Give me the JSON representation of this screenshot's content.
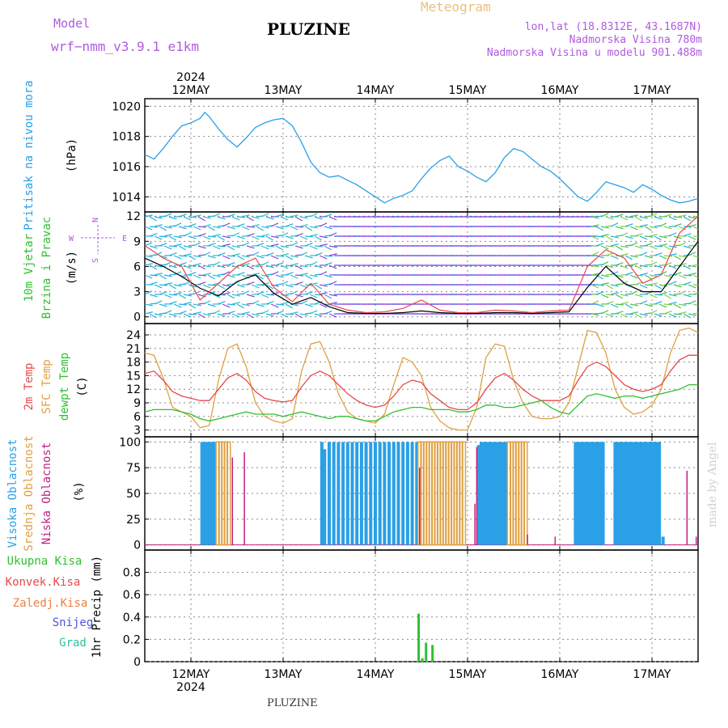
{
  "header": {
    "model_label": "Model",
    "model_name": "wrf−nmm_v3.9.1  e1km",
    "title": "PLUZINE",
    "meteogram_label": "Meteogram",
    "lonlat": "lon,lat (18.8312E, 43.1687N)",
    "elevation": "Nadmorska Visina 780m",
    "model_elevation": "Nadmorska Visina u modelu 901.488m",
    "footer_title": "PLUZINE",
    "credit": "made by Angel"
  },
  "colors": {
    "pressure": "#2aa0e6",
    "temp2m": "#e8484a",
    "sfc_temp": "#e0a040",
    "dewpt": "#30c030",
    "cloud_high": "#2aa0e6",
    "cloud_mid": "#e0a040",
    "cloud_low": "#c02080",
    "wind_speed": "#000000",
    "gusts": "#e8484a",
    "precip": "#30c030"
  },
  "chart_data": [
    {
      "type": "line",
      "panel": "pressure",
      "label_lines": [
        "Pritisak na nivou mora"
      ],
      "unit": "(hPa)",
      "time_ticks": [
        "12MAY",
        "13MAY",
        "14MAY",
        "15MAY",
        "16MAY",
        "17MAY"
      ],
      "year": "2024",
      "x_range": [
        11.5,
        17.5
      ],
      "ylim": [
        1013,
        1020.5
      ],
      "yticks": [
        "1014",
        "1016",
        "1018",
        "1020"
      ],
      "series": [
        {
          "color": "#2aa0e6",
          "x": [
            11.5,
            11.6,
            11.7,
            11.8,
            11.9,
            12.0,
            12.1,
            12.15,
            12.2,
            12.3,
            12.4,
            12.5,
            12.6,
            12.7,
            12.8,
            12.9,
            13.0,
            13.1,
            13.2,
            13.3,
            13.4,
            13.5,
            13.6,
            13.7,
            13.8,
            13.9,
            14.0,
            14.1,
            14.2,
            14.3,
            14.4,
            14.5,
            14.6,
            14.7,
            14.8,
            14.9,
            15.0,
            15.1,
            15.2,
            15.3,
            15.4,
            15.5,
            15.6,
            15.7,
            15.8,
            15.9,
            16.0,
            16.1,
            16.2,
            16.3,
            16.4,
            16.5,
            16.6,
            16.7,
            16.8,
            16.9,
            17.0,
            17.1,
            17.2,
            17.3,
            17.4,
            17.5
          ],
          "y": [
            1016.8,
            1016.5,
            1017.2,
            1018.0,
            1018.7,
            1018.9,
            1019.2,
            1019.6,
            1019.3,
            1018.5,
            1017.8,
            1017.3,
            1017.9,
            1018.6,
            1018.9,
            1019.1,
            1019.2,
            1018.7,
            1017.6,
            1016.3,
            1015.6,
            1015.3,
            1015.4,
            1015.1,
            1014.8,
            1014.4,
            1014.0,
            1013.6,
            1013.9,
            1014.1,
            1014.4,
            1015.2,
            1015.9,
            1016.4,
            1016.7,
            1016.0,
            1015.7,
            1015.3,
            1015.0,
            1015.6,
            1016.6,
            1017.2,
            1017.0,
            1016.5,
            1016.0,
            1015.7,
            1015.2,
            1014.6,
            1014.0,
            1013.7,
            1014.3,
            1015.0,
            1014.8,
            1014.6,
            1014.3,
            1014.8,
            1014.5,
            1014.1,
            1013.8,
            1013.6,
            1013.7,
            1013.9
          ]
        }
      ]
    },
    {
      "type": "line",
      "panel": "wind",
      "label_lines": [
        "10m Vjetar",
        "Brzina i Pravac"
      ],
      "unit": "(m/s)",
      "compass": [
        "N",
        "W",
        "E",
        "S"
      ],
      "x_range": [
        11.5,
        17.5
      ],
      "ylim": [
        -0.8,
        12.5
      ],
      "yticks": [
        "0",
        "3",
        "6",
        "9",
        "12"
      ],
      "series": [
        {
          "color": "#000000",
          "x": [
            11.5,
            11.7,
            11.9,
            12.1,
            12.3,
            12.5,
            12.7,
            12.9,
            13.1,
            13.3,
            13.5,
            13.7,
            13.9,
            14.1,
            14.3,
            14.5,
            14.7,
            14.9,
            15.1,
            15.3,
            15.5,
            15.7,
            15.9,
            16.1,
            16.3,
            16.5,
            16.7,
            16.9,
            17.1,
            17.3,
            17.5
          ],
          "y": [
            7.0,
            6.0,
            4.8,
            3.4,
            2.5,
            4.2,
            5.0,
            2.8,
            1.5,
            2.3,
            1.2,
            0.5,
            0.4,
            0.4,
            0.5,
            0.7,
            0.5,
            0.4,
            0.4,
            0.5,
            0.5,
            0.4,
            0.5,
            0.6,
            3.5,
            6.0,
            4.0,
            3.0,
            3.0,
            6.0,
            9.0
          ]
        },
        {
          "color": "#e8484a",
          "x": [
            11.5,
            11.7,
            11.9,
            12.1,
            12.3,
            12.5,
            12.7,
            12.9,
            13.1,
            13.3,
            13.5,
            13.7,
            13.9,
            14.1,
            14.3,
            14.5,
            14.7,
            14.9,
            15.1,
            15.3,
            15.5,
            15.7,
            15.9,
            16.1,
            16.3,
            16.5,
            16.7,
            16.9,
            17.1,
            17.3,
            17.5
          ],
          "y": [
            8.5,
            7.0,
            6.0,
            2.0,
            4.0,
            6.0,
            7.0,
            3.5,
            1.8,
            4.0,
            1.5,
            0.8,
            0.5,
            0.6,
            1.0,
            2.0,
            0.8,
            0.5,
            0.5,
            0.8,
            0.7,
            0.5,
            0.7,
            0.8,
            6.0,
            8.0,
            7.0,
            4.0,
            5.0,
            10.0,
            12.0
          ]
        }
      ]
    },
    {
      "type": "line",
      "panel": "temperature",
      "label_lines": [
        "2m Temp",
        "SFC Temp",
        "dewpt Temp"
      ],
      "unit": "(C)",
      "x_range": [
        11.5,
        17.5
      ],
      "ylim": [
        1.5,
        26.5
      ],
      "yticks": [
        "3",
        "6",
        "9",
        "12",
        "15",
        "18",
        "21",
        "24"
      ],
      "series": [
        {
          "color": "#e8484a",
          "x": [
            11.5,
            11.6,
            11.7,
            11.8,
            11.9,
            12.0,
            12.1,
            12.2,
            12.3,
            12.4,
            12.5,
            12.6,
            12.7,
            12.8,
            12.9,
            13.0,
            13.1,
            13.2,
            13.3,
            13.4,
            13.5,
            13.6,
            13.7,
            13.8,
            13.9,
            14.0,
            14.1,
            14.2,
            14.3,
            14.4,
            14.5,
            14.6,
            14.7,
            14.8,
            14.9,
            15.0,
            15.1,
            15.2,
            15.3,
            15.4,
            15.5,
            15.6,
            15.7,
            15.8,
            15.9,
            16.0,
            16.1,
            16.2,
            16.3,
            16.4,
            16.5,
            16.6,
            16.7,
            16.8,
            16.9,
            17.0,
            17.1,
            17.2,
            17.3,
            17.4,
            17.5
          ],
          "y": [
            15.5,
            16.0,
            14.0,
            11.5,
            10.5,
            10.0,
            9.5,
            9.5,
            12.0,
            14.5,
            15.5,
            14.0,
            11.5,
            10.0,
            9.5,
            9.2,
            9.5,
            12.5,
            15.0,
            16.0,
            15.0,
            13.0,
            11.0,
            9.5,
            8.5,
            8.0,
            8.5,
            10.5,
            13.0,
            14.0,
            13.5,
            11.0,
            9.5,
            8.0,
            7.5,
            7.5,
            9.0,
            12.0,
            14.5,
            15.5,
            14.0,
            12.0,
            10.5,
            9.5,
            9.5,
            9.5,
            10.5,
            14.0,
            17.0,
            18.0,
            17.0,
            15.0,
            13.0,
            12.0,
            11.5,
            12.0,
            13.0,
            16.0,
            18.5,
            19.5,
            19.5
          ]
        },
        {
          "color": "#e0a040",
          "x": [
            11.5,
            11.6,
            11.7,
            11.8,
            11.9,
            12.0,
            12.1,
            12.2,
            12.3,
            12.4,
            12.5,
            12.6,
            12.7,
            12.8,
            12.9,
            13.0,
            13.1,
            13.2,
            13.3,
            13.4,
            13.5,
            13.6,
            13.7,
            13.8,
            13.9,
            14.0,
            14.1,
            14.2,
            14.3,
            14.4,
            14.5,
            14.6,
            14.7,
            14.8,
            14.9,
            15.0,
            15.1,
            15.2,
            15.3,
            15.4,
            15.5,
            15.6,
            15.7,
            15.8,
            15.9,
            16.0,
            16.1,
            16.2,
            16.3,
            16.4,
            16.5,
            16.6,
            16.7,
            16.8,
            16.9,
            17.0,
            17.1,
            17.2,
            17.3,
            17.4,
            17.5
          ],
          "y": [
            20.0,
            19.5,
            14.5,
            8.0,
            7.0,
            6.0,
            3.5,
            4.0,
            14.0,
            21.0,
            22.0,
            17.0,
            9.0,
            6.0,
            5.0,
            4.5,
            5.5,
            16.0,
            22.0,
            22.5,
            18.0,
            11.0,
            7.0,
            5.5,
            5.0,
            4.5,
            6.5,
            13.0,
            19.0,
            18.0,
            15.0,
            8.0,
            5.0,
            3.5,
            3.0,
            3.0,
            8.0,
            19.0,
            22.0,
            21.5,
            14.0,
            9.0,
            6.0,
            5.5,
            5.5,
            6.0,
            9.0,
            17.0,
            25.0,
            24.5,
            20.0,
            12.0,
            8.0,
            6.5,
            7.0,
            8.5,
            12.0,
            20.0,
            25.0,
            25.5,
            24.5
          ]
        },
        {
          "color": "#30c030",
          "x": [
            11.5,
            11.6,
            11.7,
            11.8,
            11.9,
            12.0,
            12.1,
            12.2,
            12.3,
            12.4,
            12.5,
            12.6,
            12.7,
            12.8,
            12.9,
            13.0,
            13.1,
            13.2,
            13.3,
            13.4,
            13.5,
            13.6,
            13.7,
            13.8,
            13.9,
            14.0,
            14.1,
            14.2,
            14.3,
            14.4,
            14.5,
            14.6,
            14.7,
            14.8,
            14.9,
            15.0,
            15.1,
            15.2,
            15.3,
            15.4,
            15.5,
            15.6,
            15.7,
            15.8,
            15.9,
            16.0,
            16.1,
            16.2,
            16.3,
            16.4,
            16.5,
            16.6,
            16.7,
            16.8,
            16.9,
            17.0,
            17.1,
            17.2,
            17.3,
            17.4,
            17.5
          ],
          "y": [
            7.0,
            7.5,
            7.5,
            7.5,
            7.0,
            6.5,
            5.5,
            5.0,
            5.5,
            6.0,
            6.5,
            7.0,
            6.5,
            6.5,
            6.5,
            6.0,
            6.5,
            7.0,
            6.5,
            6.0,
            5.5,
            6.0,
            6.0,
            5.5,
            5.0,
            5.0,
            6.0,
            7.0,
            7.5,
            8.0,
            8.0,
            7.5,
            7.5,
            7.5,
            7.0,
            7.0,
            7.5,
            8.5,
            8.5,
            8.0,
            8.0,
            8.5,
            9.0,
            9.5,
            8.0,
            7.0,
            6.5,
            8.5,
            10.5,
            11.0,
            10.5,
            10.0,
            10.5,
            10.5,
            10.0,
            10.5,
            11.0,
            11.5,
            12.0,
            13.0,
            13.0
          ]
        }
      ]
    },
    {
      "type": "bar",
      "panel": "clouds",
      "label_lines": [
        "Visoka Oblacnost",
        "Srednja Oblacnost",
        "Niska Oblacnost"
      ],
      "unit": "(%)",
      "x_range": [
        11.5,
        17.5
      ],
      "ylim": [
        -5,
        105
      ],
      "yticks": [
        "0",
        "25",
        "50",
        "75",
        "100"
      ],
      "series": [
        {
          "color": "#2aa0e6",
          "x": [
            12.12,
            12.14,
            12.16,
            12.18,
            12.2,
            12.22,
            12.24,
            12.26,
            13.42,
            13.45,
            13.5,
            13.55,
            13.6,
            13.65,
            13.7,
            13.75,
            13.8,
            13.85,
            13.9,
            13.95,
            14.0,
            14.05,
            14.1,
            14.15,
            14.2,
            14.25,
            14.3,
            14.35,
            14.4,
            14.45,
            15.12,
            15.15,
            15.18,
            15.21,
            15.24,
            15.27,
            15.3,
            15.33,
            15.36,
            15.39,
            15.42,
            16.17,
            16.2,
            16.23,
            16.26,
            16.29,
            16.32,
            16.35,
            16.38,
            16.41,
            16.44,
            16.47,
            16.6,
            16.63,
            16.66,
            16.69,
            16.72,
            16.75,
            16.78,
            16.81,
            16.84,
            16.87,
            16.9,
            16.93,
            16.96,
            16.99,
            17.02,
            17.05,
            17.08,
            17.12
          ],
          "values": [
            100,
            100,
            100,
            100,
            100,
            100,
            100,
            100,
            100,
            93,
            100,
            100,
            100,
            100,
            100,
            100,
            100,
            100,
            100,
            100,
            100,
            100,
            100,
            100,
            100,
            100,
            100,
            100,
            100,
            100,
            97,
            100,
            100,
            100,
            100,
            100,
            100,
            100,
            100,
            100,
            100,
            100,
            100,
            100,
            100,
            100,
            100,
            100,
            100,
            100,
            100,
            100,
            100,
            100,
            100,
            100,
            100,
            100,
            100,
            100,
            100,
            100,
            100,
            100,
            100,
            100,
            100,
            100,
            100,
            8
          ]
        },
        {
          "color": "#e0a040",
          "x": [
            12.29,
            12.32,
            12.35,
            12.38,
            12.41,
            14.48,
            14.51,
            14.54,
            14.57,
            14.6,
            14.63,
            14.66,
            14.69,
            14.72,
            14.75,
            14.78,
            14.81,
            14.84,
            14.87,
            14.9,
            14.93,
            14.96,
            15.45,
            15.48,
            15.51,
            15.54,
            15.57,
            15.6,
            15.63
          ],
          "values": [
            100,
            100,
            100,
            100,
            100,
            100,
            100,
            100,
            100,
            100,
            100,
            100,
            100,
            100,
            100,
            100,
            100,
            100,
            100,
            100,
            100,
            100,
            100,
            100,
            100,
            100,
            100,
            100,
            100
          ]
        },
        {
          "color": "#c02080",
          "x": [
            12.45,
            12.58,
            14.48,
            15.08,
            15.1,
            15.65,
            15.95,
            17.38,
            17.48
          ],
          "values": [
            85,
            90,
            75,
            40,
            95,
            10,
            8,
            72,
            8
          ]
        }
      ]
    },
    {
      "type": "bar",
      "panel": "precip",
      "legend": [
        "Ukupna  Kisa",
        "Konvek.Kisa",
        "Zaledj.Kisa",
        "Snijeg",
        "Grad"
      ],
      "legend_colors": [
        "#30c030",
        "#e8484a",
        "#f08040",
        "#5050e0",
        "#30c0a0"
      ],
      "unit": "1hr Precip (mm)",
      "x_range": [
        11.5,
        17.5
      ],
      "ylim": [
        0,
        1.0
      ],
      "yticks": [
        "0",
        "0.2",
        "0.4",
        "0.6",
        "0.8"
      ],
      "series": [
        {
          "color": "#30c030",
          "x": [
            14.47,
            14.51,
            14.55,
            14.62
          ],
          "values": [
            0.43,
            0.03,
            0.17,
            0.15
          ]
        }
      ]
    }
  ]
}
